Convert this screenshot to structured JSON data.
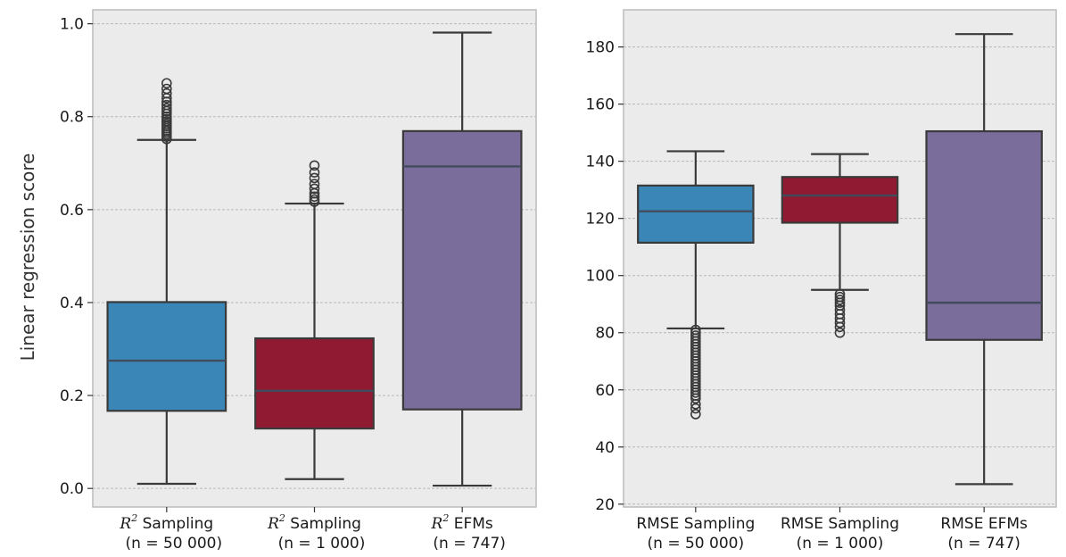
{
  "chart_data": [
    {
      "type": "box",
      "ylabel": "Linear regression score",
      "ylim": [
        -0.04,
        1.03
      ],
      "yticks": [
        "0.0",
        "0.2",
        "0.4",
        "0.6",
        "0.8",
        "1.0"
      ],
      "grid": true,
      "categories": [
        {
          "prefix": "R",
          "sup": "2",
          "line1": " Sampling",
          "line2": "(n = 50 000)"
        },
        {
          "prefix": "R",
          "sup": "2",
          "line1": " Sampling",
          "line2": "(n = 1 000)"
        },
        {
          "prefix": "R",
          "sup": "2",
          "line1": " EFMs",
          "line2": "(n = 747)"
        }
      ],
      "boxes": [
        {
          "whisker_low": 0.01,
          "q1": 0.167,
          "median": 0.275,
          "q3": 0.401,
          "whisker_high": 0.75,
          "color": "#3a87b7",
          "outliers": [
            0.752,
            0.757,
            0.762,
            0.766,
            0.77,
            0.775,
            0.78,
            0.785,
            0.79,
            0.795,
            0.8,
            0.806,
            0.812,
            0.818,
            0.825,
            0.832,
            0.84,
            0.85,
            0.86,
            0.872
          ]
        },
        {
          "whisker_low": 0.02,
          "q1": 0.129,
          "median": 0.21,
          "q3": 0.323,
          "whisker_high": 0.613,
          "color": "#901a32",
          "outliers": [
            0.617,
            0.622,
            0.628,
            0.635,
            0.645,
            0.655,
            0.668,
            0.68,
            0.695
          ]
        },
        {
          "whisker_low": 0.006,
          "q1": 0.17,
          "median": 0.693,
          "q3": 0.769,
          "whisker_high": 0.981,
          "color": "#7a6c9b",
          "outliers": []
        }
      ]
    },
    {
      "type": "box",
      "ylabel": "",
      "ylim": [
        19,
        193
      ],
      "yticks": [
        "20",
        "40",
        "60",
        "80",
        "100",
        "120",
        "140",
        "160",
        "180"
      ],
      "grid": true,
      "categories": [
        {
          "prefix": "",
          "sup": "",
          "line1": "RMSE Sampling",
          "line2": "(n = 50 000)"
        },
        {
          "prefix": "",
          "sup": "",
          "line1": "RMSE Sampling",
          "line2": "(n = 1 000)"
        },
        {
          "prefix": "",
          "sup": "",
          "line1": "RMSE EFMs",
          "line2": "(n = 747)"
        }
      ],
      "boxes": [
        {
          "whisker_low": 81.5,
          "q1": 111.5,
          "median": 122.5,
          "q3": 131.5,
          "whisker_high": 143.5,
          "color": "#3a87b7",
          "outliers": [
            81,
            80,
            79,
            78,
            77,
            76,
            75,
            74,
            73,
            72,
            71,
            70,
            69,
            68,
            67,
            66,
            65,
            64,
            63,
            62,
            61,
            60,
            59,
            58,
            57,
            55,
            53.5,
            51.5
          ]
        },
        {
          "whisker_low": 95,
          "q1": 118.5,
          "median": 128,
          "q3": 134.5,
          "whisker_high": 142.5,
          "color": "#901a32",
          "outliers": [
            93.5,
            92.5,
            91.5,
            90.5,
            89.5,
            88,
            86.5,
            85,
            83.5,
            82,
            80
          ]
        },
        {
          "whisker_low": 27,
          "q1": 77.5,
          "median": 90.5,
          "q3": 150.5,
          "whisker_high": 184.5,
          "color": "#7a6c9b",
          "outliers": []
        }
      ]
    }
  ]
}
